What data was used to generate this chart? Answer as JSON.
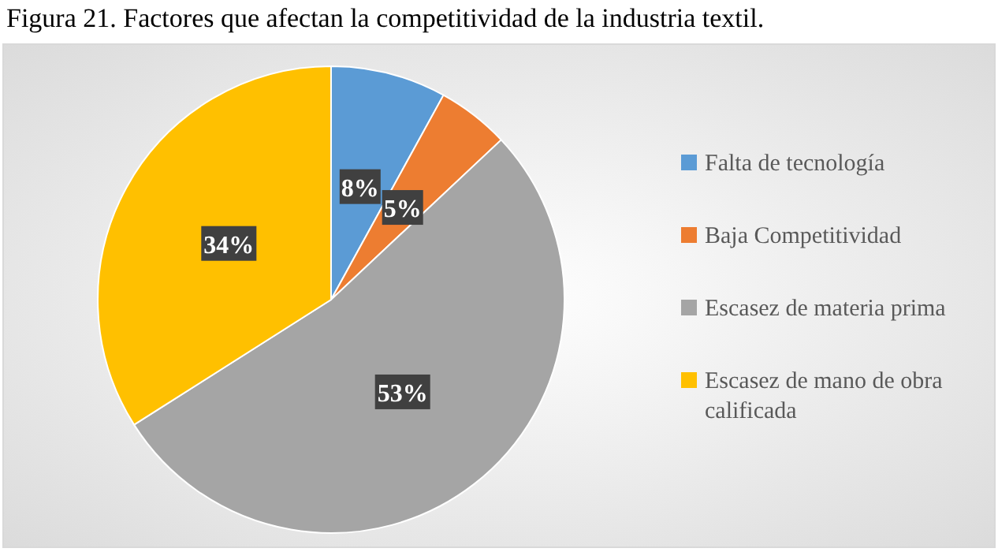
{
  "chart_data": {
    "type": "pie",
    "title": "Figura 21. Factores que afectan la competitividad de la industria textil.",
    "categories": [
      "Falta de tecnología",
      "Baja Competitividad",
      "Escasez de materia prima",
      "Escasez de mano de obra calificada"
    ],
    "values": [
      8,
      5,
      53,
      34
    ],
    "colors": [
      "#5b9bd5",
      "#ed7d31",
      "#a5a5a5",
      "#ffc000"
    ],
    "value_labels": [
      "8%",
      "5%",
      "53%",
      "34%"
    ],
    "legend": "right"
  }
}
